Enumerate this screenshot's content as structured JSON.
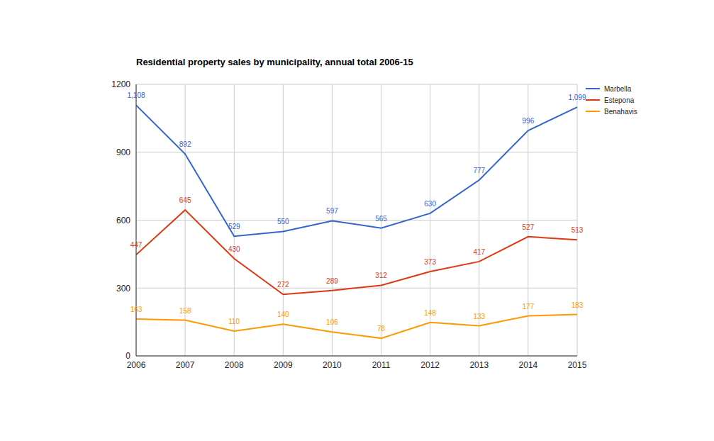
{
  "chart_data": {
    "type": "line",
    "title": "Residential property sales by municipality, annual total 2006-15",
    "x": [
      2006,
      2007,
      2008,
      2009,
      2010,
      2011,
      2012,
      2013,
      2014,
      2015
    ],
    "series": [
      {
        "name": "Marbella",
        "color": "#3366cc",
        "values": [
          1108,
          892,
          529,
          550,
          597,
          565,
          630,
          777,
          996,
          1099
        ],
        "value_labels": [
          "1,108",
          "892",
          "529",
          "550",
          "597",
          "565",
          "630",
          "777",
          "996",
          "1,099"
        ]
      },
      {
        "name": "Estepona",
        "color": "#dc3912",
        "values": [
          447,
          645,
          430,
          272,
          289,
          312,
          373,
          417,
          527,
          513
        ]
      },
      {
        "name": "Benahavis",
        "color": "#ff9900",
        "values": [
          163,
          158,
          110,
          140,
          106,
          78,
          148,
          133,
          177,
          183
        ]
      }
    ],
    "xlim": [
      2006,
      2015
    ],
    "xticks": [
      2006,
      2007,
      2008,
      2009,
      2010,
      2011,
      2012,
      2013,
      2014,
      2015
    ],
    "ylim": [
      0,
      1200
    ],
    "yticks": [
      0,
      300,
      600,
      900,
      1200
    ],
    "grid": true,
    "legend": "right",
    "data_labels": true
  }
}
